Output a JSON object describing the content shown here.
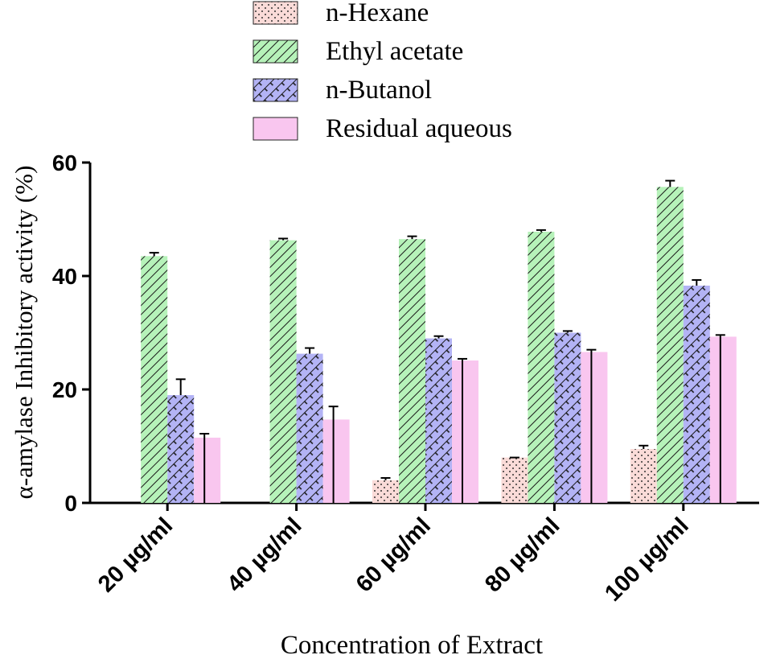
{
  "chart_data": {
    "type": "bar",
    "title": "",
    "xlabel": "Concentration of Extract",
    "ylabel": "α-amylase Inhibitory activity (%)",
    "ylim": [
      0,
      60
    ],
    "yticks": [
      0,
      20,
      40,
      60
    ],
    "grid": false,
    "legend_position": "top",
    "categories": [
      "20 µg/ml",
      "40 µg/ml",
      "60 µg/ml",
      "80 µg/ml",
      "100 µg/ml"
    ],
    "series": [
      {
        "name": "n-Hexane",
        "color": "#fadbd8",
        "pattern": "dots",
        "values": [
          null,
          null,
          4.0,
          8.0,
          9.5
        ],
        "errors": [
          null,
          null,
          0.4,
          0.0,
          0.6
        ]
      },
      {
        "name": "Ethyl acetate",
        "color": "#b6f2b9",
        "pattern": "diagonal",
        "values": [
          43.5,
          46.3,
          46.5,
          47.8,
          55.7
        ],
        "errors": [
          0.6,
          0.3,
          0.5,
          0.3,
          1.1
        ]
      },
      {
        "name": "n-Butanol",
        "color": "#b3b3f5",
        "pattern": "crosshatch",
        "values": [
          19.0,
          26.3,
          29.0,
          30.0,
          38.3
        ],
        "errors": [
          2.8,
          1.0,
          0.4,
          0.3,
          1.0
        ]
      },
      {
        "name": "Residual aqueous",
        "color": "#f9c6ef",
        "pattern": "vertical",
        "values": [
          11.5,
          14.7,
          25.1,
          26.6,
          29.3
        ],
        "errors": [
          0.7,
          2.3,
          0.3,
          0.4,
          0.3
        ]
      }
    ]
  }
}
